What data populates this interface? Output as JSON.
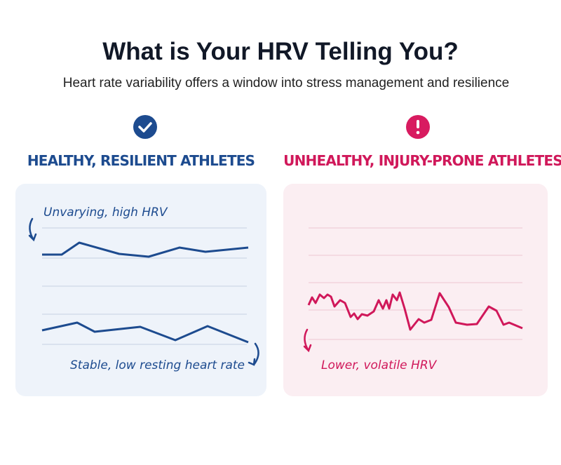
{
  "header": {
    "title": "What is Your HRV Telling You?",
    "subtitle": "Heart rate variability offers a window into stress management and resilience"
  },
  "panels": [
    {
      "heading": "HEALTHY, RESILIENT ATHLETES",
      "annotations": [
        "Unvarying, high HRV",
        "Stable, low resting heart rate"
      ]
    },
    {
      "heading": "UNHEALTHY, INJURY-PRONE ATHLETES",
      "annotations": [
        "Lower, volatile HRV"
      ]
    }
  ]
}
